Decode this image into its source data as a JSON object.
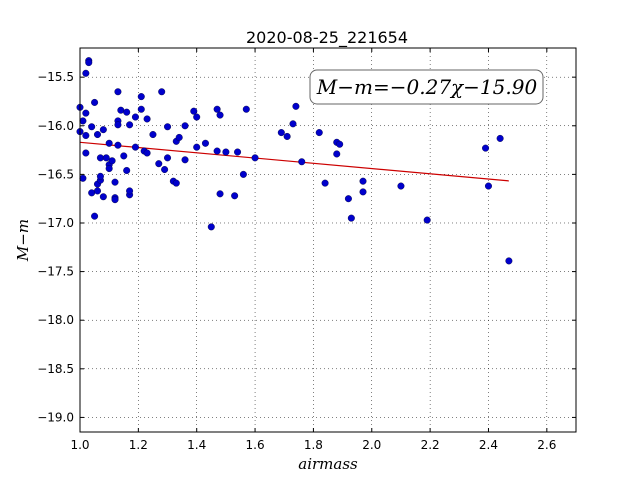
{
  "chart_data": {
    "type": "scatter",
    "title": "2020-08-25_221654",
    "xlabel": "airmass",
    "ylabel": "M−m",
    "xlim": [
      1.0,
      2.7
    ],
    "ylim": [
      -19.15,
      -15.2
    ],
    "xticks": [
      1.0,
      1.2,
      1.4,
      1.6,
      1.8,
      2.0,
      2.2,
      2.4,
      2.6
    ],
    "xtick_labels": [
      "1.0",
      "1.2",
      "1.4",
      "1.6",
      "1.8",
      "2.0",
      "2.2",
      "2.4",
      "2.6"
    ],
    "yticks": [
      -15.5,
      -16.0,
      -16.5,
      -17.0,
      -17.5,
      -18.0,
      -18.5,
      -19.0
    ],
    "ytick_labels": [
      "−15.5",
      "−16.0",
      "−16.5",
      "−17.0",
      "−17.5",
      "−18.0",
      "−18.5",
      "−19.0"
    ],
    "grid": true,
    "annotation": "M−m=−0.27χ−15.90",
    "colors": {
      "points": "#0000cc",
      "fit_line": "#cc0000"
    },
    "fit": {
      "slope": -0.27,
      "intercept": -15.9,
      "x_range": [
        1.0,
        2.47
      ]
    },
    "points": [
      [
        1.0,
        -15.81
      ],
      [
        1.0,
        -16.06
      ],
      [
        1.01,
        -15.95
      ],
      [
        1.01,
        -16.54
      ],
      [
        1.02,
        -16.1
      ],
      [
        1.02,
        -15.46
      ],
      [
        1.02,
        -16.28
      ],
      [
        1.02,
        -15.87
      ],
      [
        1.03,
        -15.33
      ],
      [
        1.03,
        -15.35
      ],
      [
        1.04,
        -16.01
      ],
      [
        1.04,
        -16.69
      ],
      [
        1.05,
        -15.76
      ],
      [
        1.05,
        -16.93
      ],
      [
        1.06,
        -16.09
      ],
      [
        1.06,
        -16.6
      ],
      [
        1.06,
        -16.67
      ],
      [
        1.07,
        -16.56
      ],
      [
        1.07,
        -16.52
      ],
      [
        1.07,
        -16.33
      ],
      [
        1.08,
        -16.73
      ],
      [
        1.08,
        -16.04
      ],
      [
        1.09,
        -16.33
      ],
      [
        1.1,
        -16.4
      ],
      [
        1.1,
        -16.44
      ],
      [
        1.1,
        -16.18
      ],
      [
        1.11,
        -16.36
      ],
      [
        1.12,
        -16.74
      ],
      [
        1.12,
        -16.76
      ],
      [
        1.12,
        -16.58
      ],
      [
        1.13,
        -15.65
      ],
      [
        1.13,
        -15.95
      ],
      [
        1.13,
        -15.99
      ],
      [
        1.13,
        -16.2
      ],
      [
        1.14,
        -15.84
      ],
      [
        1.15,
        -16.31
      ],
      [
        1.16,
        -15.86
      ],
      [
        1.16,
        -16.46
      ],
      [
        1.17,
        -16.71
      ],
      [
        1.17,
        -16.67
      ],
      [
        1.17,
        -15.99
      ],
      [
        1.19,
        -15.91
      ],
      [
        1.19,
        -16.22
      ],
      [
        1.21,
        -15.7
      ],
      [
        1.21,
        -15.83
      ],
      [
        1.22,
        -16.26
      ],
      [
        1.23,
        -16.28
      ],
      [
        1.23,
        -15.93
      ],
      [
        1.25,
        -16.09
      ],
      [
        1.27,
        -16.39
      ],
      [
        1.28,
        -15.65
      ],
      [
        1.29,
        -16.45
      ],
      [
        1.3,
        -16.33
      ],
      [
        1.3,
        -16.01
      ],
      [
        1.32,
        -16.57
      ],
      [
        1.33,
        -16.16
      ],
      [
        1.33,
        -16.59
      ],
      [
        1.34,
        -16.12
      ],
      [
        1.36,
        -16.35
      ],
      [
        1.36,
        -16.0
      ],
      [
        1.39,
        -15.85
      ],
      [
        1.4,
        -16.22
      ],
      [
        1.4,
        -15.91
      ],
      [
        1.43,
        -16.18
      ],
      [
        1.45,
        -17.04
      ],
      [
        1.47,
        -15.83
      ],
      [
        1.47,
        -16.26
      ],
      [
        1.48,
        -15.89
      ],
      [
        1.48,
        -16.7
      ],
      [
        1.5,
        -16.27
      ],
      [
        1.53,
        -16.72
      ],
      [
        1.54,
        -16.27
      ],
      [
        1.56,
        -16.5
      ],
      [
        1.57,
        -15.83
      ],
      [
        1.6,
        -16.33
      ],
      [
        1.69,
        -16.07
      ],
      [
        1.71,
        -16.11
      ],
      [
        1.73,
        -15.98
      ],
      [
        1.74,
        -15.8
      ],
      [
        1.76,
        -16.37
      ],
      [
        1.82,
        -16.07
      ],
      [
        1.84,
        -16.59
      ],
      [
        1.88,
        -16.17
      ],
      [
        1.88,
        -16.29
      ],
      [
        1.89,
        -16.19
      ],
      [
        1.92,
        -16.75
      ],
      [
        1.93,
        -16.95
      ],
      [
        1.97,
        -16.57
      ],
      [
        1.97,
        -16.68
      ],
      [
        2.1,
        -16.62
      ],
      [
        2.19,
        -16.97
      ],
      [
        2.39,
        -16.23
      ],
      [
        2.4,
        -16.62
      ],
      [
        2.44,
        -16.13
      ],
      [
        2.47,
        -17.39
      ]
    ]
  }
}
